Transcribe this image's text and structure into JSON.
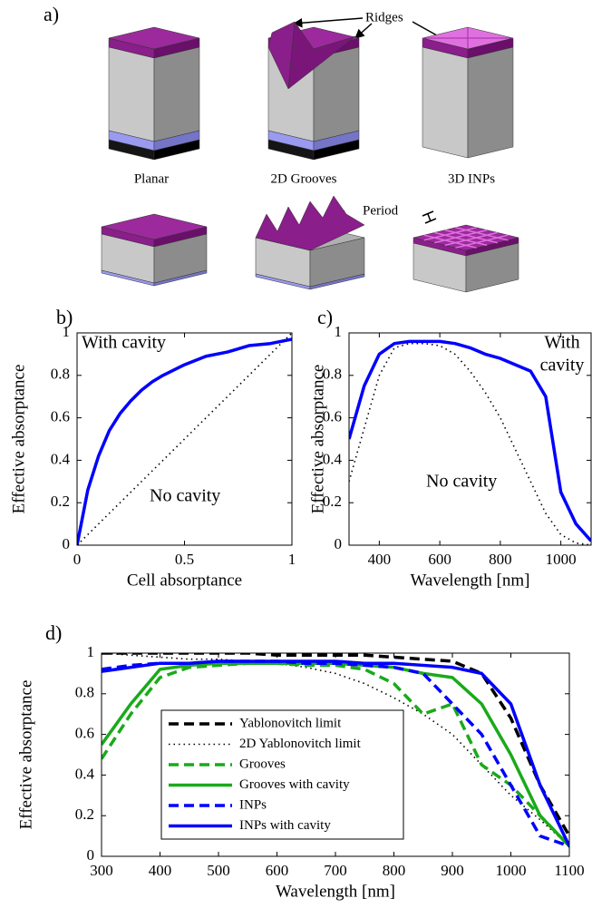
{
  "panel_a": {
    "label": "a)",
    "ridges": "Ridges",
    "period": "Period",
    "captions": [
      "Planar",
      "2D Grooves",
      "3D INPs"
    ]
  },
  "chart_data": [
    {
      "type": "line",
      "panel": "b)",
      "xlabel": "Cell absorptance",
      "ylabel": "Effective absorptance",
      "xlim": [
        0,
        1
      ],
      "ylim": [
        0,
        1
      ],
      "xticks": [
        0,
        0.5,
        1
      ],
      "yticks": [
        0,
        0.2,
        0.4,
        0.6,
        0.8,
        1
      ],
      "x": [
        0,
        0.05,
        0.1,
        0.15,
        0.2,
        0.25,
        0.3,
        0.35,
        0.4,
        0.5,
        0.6,
        0.7,
        0.8,
        0.9,
        1
      ],
      "series": [
        {
          "color": "#0000ff",
          "style": "solid",
          "values": [
            0,
            0.26,
            0.42,
            0.54,
            0.62,
            0.68,
            0.73,
            0.77,
            0.8,
            0.85,
            0.89,
            0.91,
            0.94,
            0.95,
            0.97
          ]
        },
        {
          "color": "#000000",
          "style": "dotted",
          "values": [
            0,
            0.05,
            0.1,
            0.15,
            0.2,
            0.25,
            0.3,
            0.35,
            0.4,
            0.5,
            0.6,
            0.7,
            0.8,
            0.9,
            1
          ]
        }
      ],
      "annotations": [
        {
          "text": "With cavity",
          "color": "#0000ff"
        },
        {
          "text": "No cavity",
          "color": "#000000"
        }
      ]
    },
    {
      "type": "line",
      "panel": "c)",
      "xlabel": "Wavelength [nm]",
      "ylabel": "Effective absorptance",
      "xlim": [
        300,
        1100
      ],
      "ylim": [
        0,
        1
      ],
      "xticks": [
        400,
        600,
        800,
        1000
      ],
      "yticks": [
        0,
        0.2,
        0.4,
        0.6,
        0.8,
        1
      ],
      "x": [
        300,
        350,
        400,
        450,
        500,
        550,
        600,
        650,
        700,
        750,
        800,
        850,
        900,
        950,
        1000,
        1050,
        1100
      ],
      "series": [
        {
          "color": "#0000ff",
          "style": "solid",
          "values": [
            0.5,
            0.75,
            0.9,
            0.95,
            0.96,
            0.96,
            0.96,
            0.95,
            0.93,
            0.9,
            0.88,
            0.85,
            0.82,
            0.7,
            0.25,
            0.1,
            0.02
          ]
        },
        {
          "color": "#000000",
          "style": "dotted",
          "values": [
            0.3,
            0.55,
            0.8,
            0.93,
            0.95,
            0.95,
            0.94,
            0.9,
            0.82,
            0.72,
            0.6,
            0.45,
            0.3,
            0.15,
            0.05,
            0.01,
            0
          ]
        }
      ],
      "annotations": [
        {
          "text": [
            "With",
            "cavity"
          ],
          "color": "#0000ff"
        },
        {
          "text": "No cavity",
          "color": "#000000"
        }
      ]
    },
    {
      "type": "line",
      "panel": "d)",
      "xlabel": "Wavelength [nm]",
      "ylabel": "Effective absorptance",
      "xlim": [
        300,
        1100
      ],
      "ylim": [
        0,
        1
      ],
      "xticks": [
        300,
        400,
        500,
        600,
        700,
        800,
        900,
        1000,
        1100
      ],
      "yticks": [
        0,
        0.2,
        0.4,
        0.6,
        0.8,
        1
      ],
      "legend": "lower left",
      "x": [
        300,
        350,
        400,
        450,
        500,
        550,
        600,
        650,
        700,
        750,
        800,
        850,
        900,
        950,
        1000,
        1050,
        1100
      ],
      "series": [
        {
          "name": "Yablonovitch limit",
          "color": "#000000",
          "style": "dashed",
          "values": [
            1,
            1,
            1,
            1,
            1,
            1,
            0.99,
            0.99,
            0.99,
            0.99,
            0.98,
            0.97,
            0.96,
            0.9,
            0.68,
            0.35,
            0.1
          ]
        },
        {
          "name": "2D Yablonovitch limit",
          "color": "#000000",
          "style": "dotted",
          "values": [
            1,
            0.99,
            0.98,
            0.97,
            0.97,
            0.96,
            0.95,
            0.93,
            0.9,
            0.85,
            0.78,
            0.7,
            0.6,
            0.45,
            0.3,
            0.18,
            0.05
          ]
        },
        {
          "name": "Grooves",
          "color": "#1aaa1a",
          "style": "dashed",
          "values": [
            0.48,
            0.7,
            0.88,
            0.93,
            0.94,
            0.95,
            0.95,
            0.94,
            0.94,
            0.92,
            0.85,
            0.7,
            0.75,
            0.45,
            0.35,
            0.2,
            0.05
          ]
        },
        {
          "name": "Grooves with cavity",
          "color": "#1aaa1a",
          "style": "solid",
          "values": [
            0.55,
            0.75,
            0.92,
            0.94,
            0.95,
            0.95,
            0.95,
            0.95,
            0.95,
            0.94,
            0.93,
            0.9,
            0.88,
            0.75,
            0.5,
            0.2,
            0.05
          ]
        },
        {
          "name": "INPs",
          "color": "#0000ff",
          "style": "dashed",
          "values": [
            0.92,
            0.94,
            0.95,
            0.95,
            0.96,
            0.96,
            0.96,
            0.95,
            0.95,
            0.94,
            0.93,
            0.9,
            0.75,
            0.6,
            0.35,
            0.1,
            0.05
          ]
        },
        {
          "name": "INPs with cavity",
          "color": "#0000ff",
          "style": "solid",
          "values": [
            0.91,
            0.93,
            0.95,
            0.95,
            0.96,
            0.96,
            0.96,
            0.96,
            0.96,
            0.95,
            0.95,
            0.94,
            0.93,
            0.9,
            0.75,
            0.35,
            0.05
          ]
        }
      ]
    }
  ]
}
